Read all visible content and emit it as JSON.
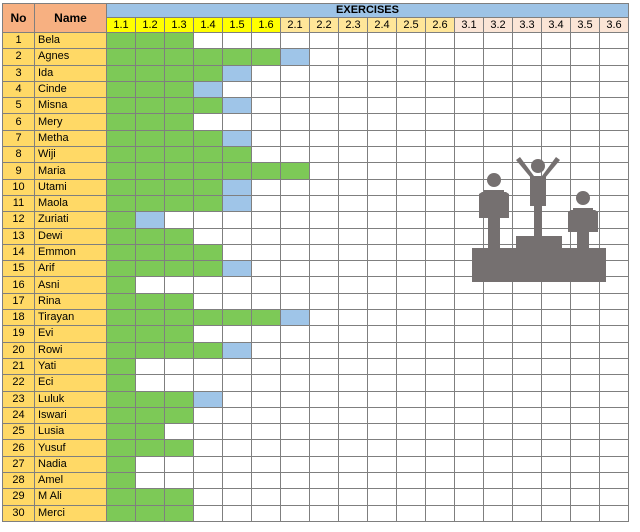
{
  "headers": {
    "no": "No",
    "name": "Name",
    "exercises": "EXERCISES"
  },
  "columns": [
    "1.1",
    "1.2",
    "1.3",
    "1.4",
    "1.5",
    "1.6",
    "2.1",
    "2.2",
    "2.3",
    "2.4",
    "2.5",
    "2.6",
    "3.1",
    "3.2",
    "3.3",
    "3.4",
    "3.5",
    "3.6"
  ],
  "column_groups": [
    "g1",
    "g1",
    "g1",
    "g1",
    "g1",
    "g1",
    "g2",
    "g2",
    "g2",
    "g2",
    "g2",
    "g2",
    "g3",
    "g3",
    "g3",
    "g3",
    "g3",
    "g3"
  ],
  "colors": {
    "completed": "#7dc957",
    "in_progress": "#9fc5e8",
    "header": "#f7b081",
    "exercises_band": "#9dc3e6",
    "names": "#ffd966"
  },
  "legend_codes": {
    "g": "completed",
    "b": "in_progress",
    "w": "not started"
  },
  "icon": "podium-winners-icon",
  "rows": [
    {
      "no": "1",
      "name": "Bela",
      "cells": "ggg"
    },
    {
      "no": "2",
      "name": "Agnes",
      "cells": "ggggggb"
    },
    {
      "no": "3",
      "name": "Ida",
      "cells": "ggggb"
    },
    {
      "no": "4",
      "name": "Cinde",
      "cells": "gggbw"
    },
    {
      "no": "5",
      "name": "Misna",
      "cells": "ggggb"
    },
    {
      "no": "6",
      "name": "Mery",
      "cells": "gggww"
    },
    {
      "no": "7",
      "name": "Metha",
      "cells": "ggggb"
    },
    {
      "no": "8",
      "name": "Wiji",
      "cells": "gggggw"
    },
    {
      "no": "9",
      "name": "Maria",
      "cells": "ggggggg"
    },
    {
      "no": "10",
      "name": "Utami",
      "cells": "ggggb"
    },
    {
      "no": "11",
      "name": "Maola",
      "cells": "ggggb"
    },
    {
      "no": "12",
      "name": "Zuriati",
      "cells": "gbw"
    },
    {
      "no": "13",
      "name": "Dewi",
      "cells": "gggw"
    },
    {
      "no": "14",
      "name": "Emmon",
      "cells": "ggggw"
    },
    {
      "no": "15",
      "name": "Arif",
      "cells": "ggggb"
    },
    {
      "no": "16",
      "name": "Asni",
      "cells": "gwww"
    },
    {
      "no": "17",
      "name": "Rina",
      "cells": "gggw"
    },
    {
      "no": "18",
      "name": "Tirayan",
      "cells": "ggggggb"
    },
    {
      "no": "19",
      "name": "Evi",
      "cells": "gggw"
    },
    {
      "no": "20",
      "name": "Rowi",
      "cells": "ggggb"
    },
    {
      "no": "21",
      "name": "Yati",
      "cells": "gww"
    },
    {
      "no": "22",
      "name": "Eci",
      "cells": "gww"
    },
    {
      "no": "23",
      "name": "Luluk",
      "cells": "gggb"
    },
    {
      "no": "24",
      "name": "Iswari",
      "cells": "ggg"
    },
    {
      "no": "25",
      "name": "Lusia",
      "cells": "ggw"
    },
    {
      "no": "26",
      "name": "Yusuf",
      "cells": "ggg"
    },
    {
      "no": "27",
      "name": "Nadia",
      "cells": "gww"
    },
    {
      "no": "28",
      "name": "Amel",
      "cells": "gww"
    },
    {
      "no": "29",
      "name": "M Ali",
      "cells": "ggg"
    },
    {
      "no": "30",
      "name": "Merci",
      "cells": "ggg"
    }
  ]
}
